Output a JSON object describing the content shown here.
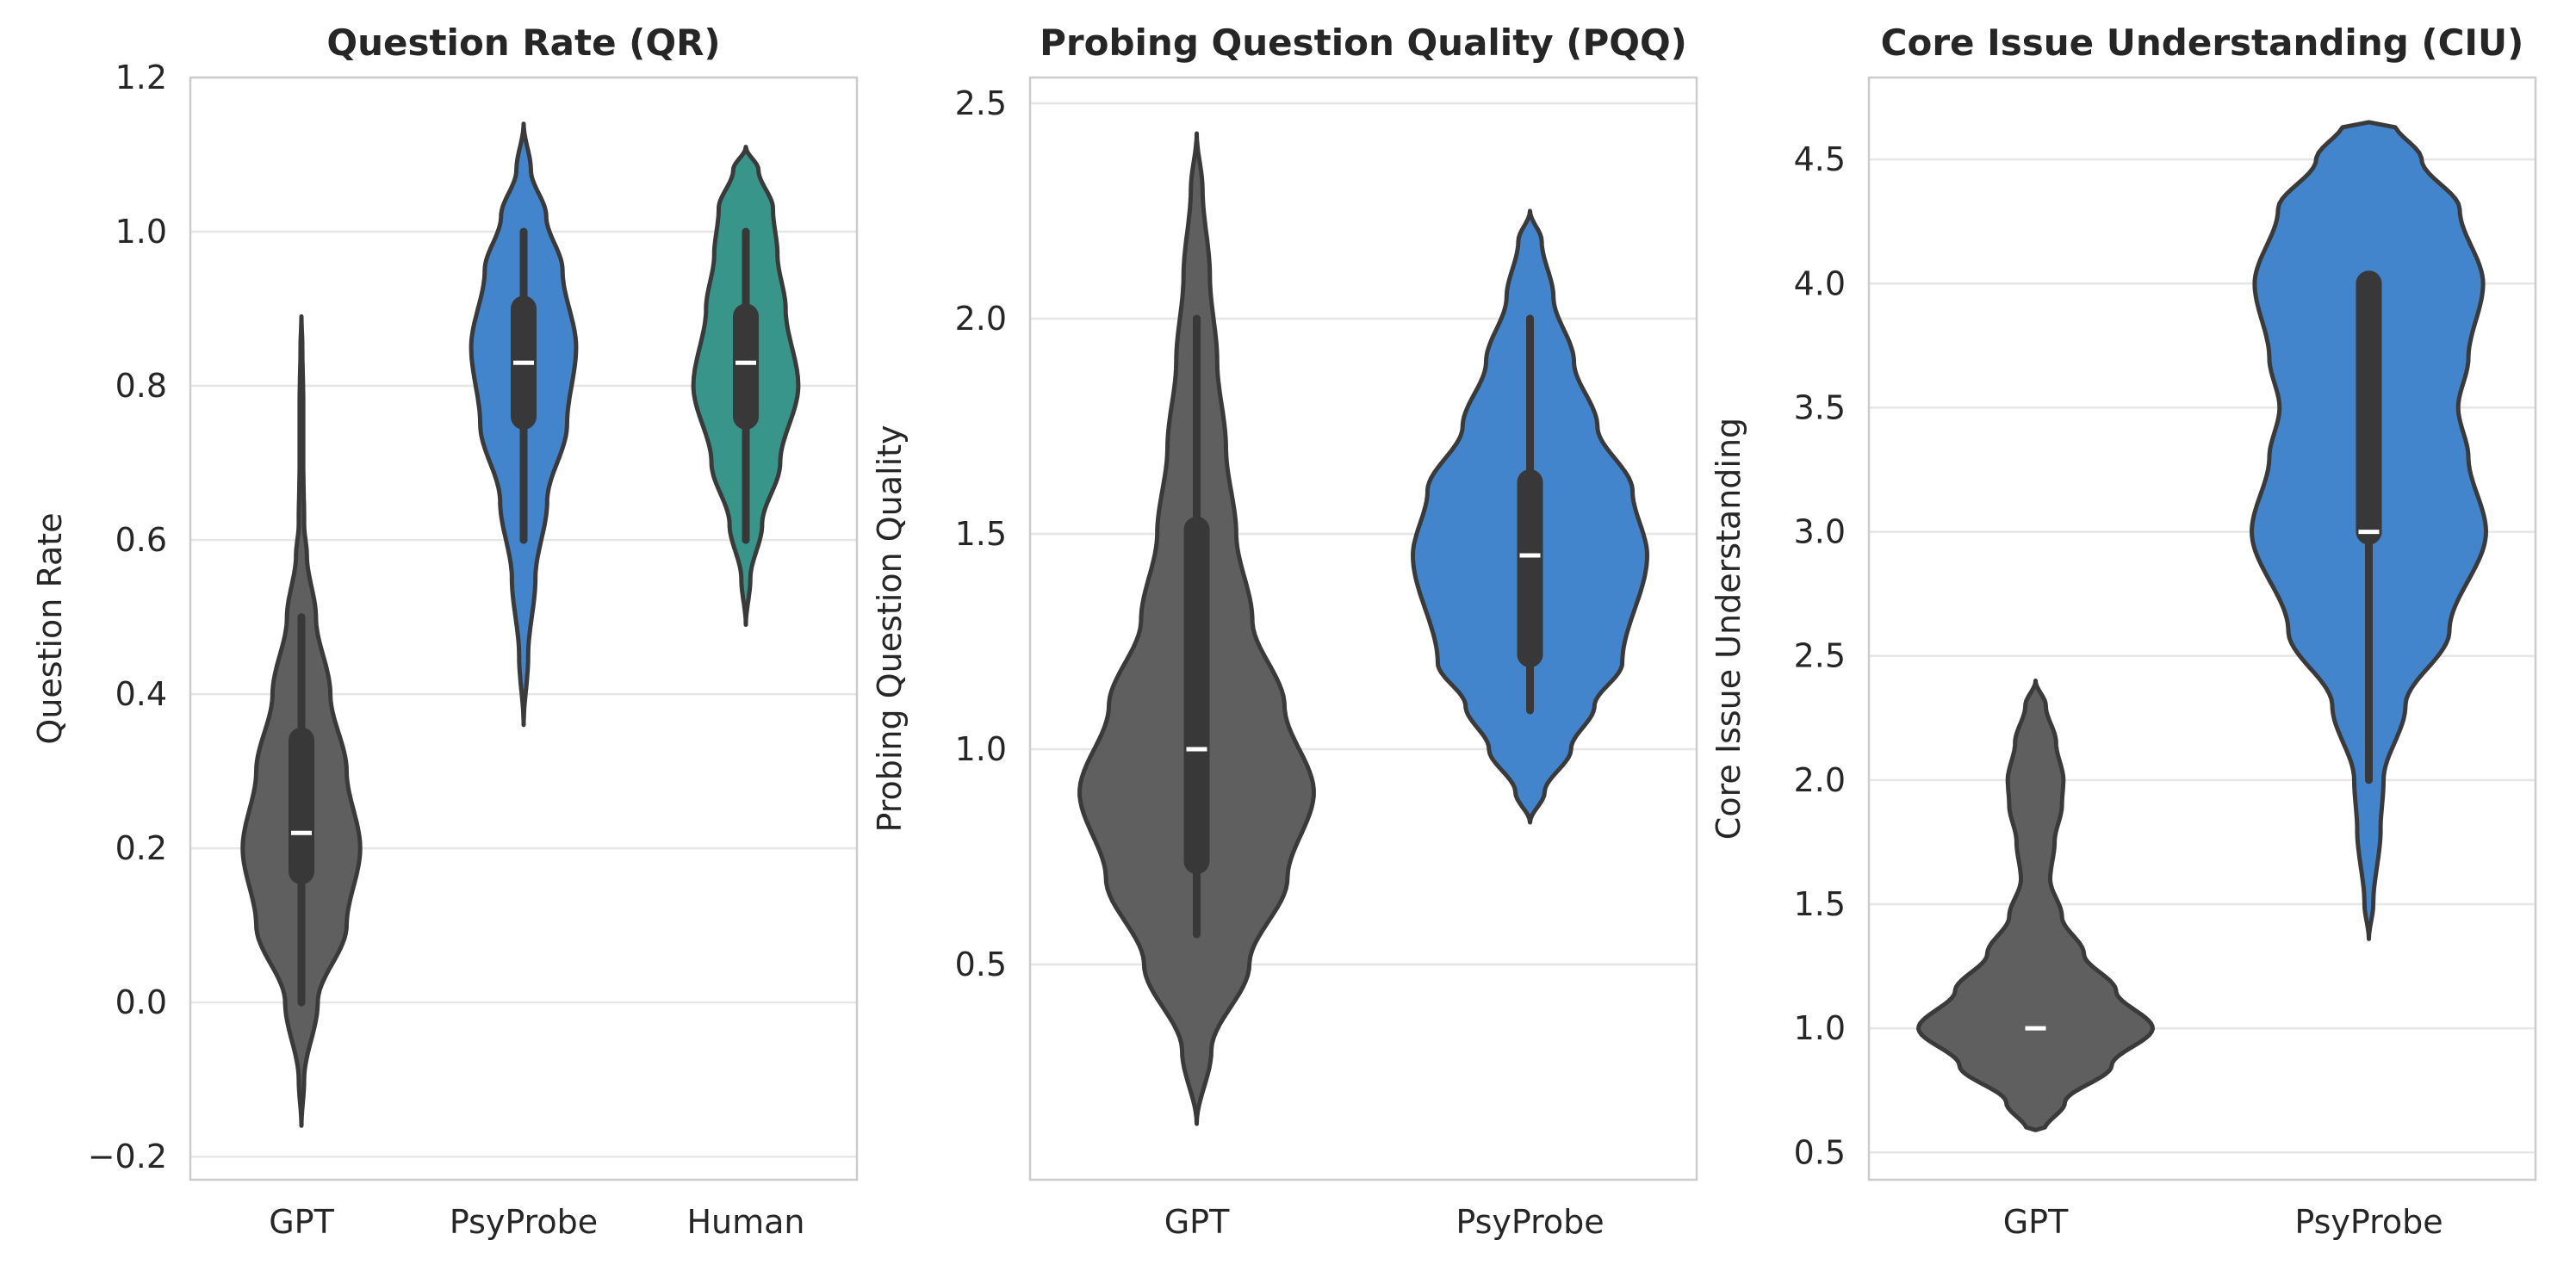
{
  "chart_data": [
    {
      "type": "violin",
      "title": "Question Rate (QR)",
      "xlabel": "",
      "ylabel": "Question Rate",
      "ylim": [
        -0.23,
        1.2
      ],
      "yticks": [
        -0.2,
        0.0,
        0.2,
        0.4,
        0.6,
        0.8,
        1.0,
        1.2
      ],
      "ytick_labels": [
        "−0.2",
        "0.0",
        "0.2",
        "0.4",
        "0.6",
        "0.8",
        "1.0",
        "1.2"
      ],
      "grid": true,
      "categories": [
        "GPT",
        "PsyProbe",
        "Human"
      ],
      "colors": [
        "#5f5f5f",
        "#4285cc",
        "#379689"
      ],
      "violins": [
        {
          "name": "GPT",
          "median": 0.22,
          "q1": 0.17,
          "q3": 0.34,
          "whisker_low": 0.0,
          "whisker_high": 0.5,
          "profile": [
            [
              -0.16,
              0.0
            ],
            [
              -0.1,
              0.03
            ],
            [
              0.0,
              0.18
            ],
            [
              0.1,
              0.5
            ],
            [
              0.2,
              0.65
            ],
            [
              0.3,
              0.5
            ],
            [
              0.4,
              0.32
            ],
            [
              0.5,
              0.16
            ],
            [
              0.58,
              0.06
            ],
            [
              0.62,
              0.03
            ],
            [
              0.7,
              0.02
            ],
            [
              0.78,
              0.02
            ],
            [
              0.85,
              0.01
            ],
            [
              0.89,
              0.0
            ]
          ]
        },
        {
          "name": "PsyProbe",
          "median": 0.83,
          "q1": 0.76,
          "q3": 0.9,
          "whisker_low": 0.6,
          "whisker_high": 1.0,
          "profile": [
            [
              0.36,
              0.0
            ],
            [
              0.45,
              0.05
            ],
            [
              0.55,
              0.13
            ],
            [
              0.65,
              0.26
            ],
            [
              0.75,
              0.48
            ],
            [
              0.85,
              0.58
            ],
            [
              0.95,
              0.43
            ],
            [
              1.02,
              0.25
            ],
            [
              1.08,
              0.08
            ],
            [
              1.14,
              0.0
            ]
          ]
        },
        {
          "name": "Human",
          "median": 0.83,
          "q1": 0.76,
          "q3": 0.89,
          "whisker_low": 0.6,
          "whisker_high": 1.0,
          "profile": [
            [
              0.49,
              0.0
            ],
            [
              0.55,
              0.05
            ],
            [
              0.62,
              0.18
            ],
            [
              0.7,
              0.38
            ],
            [
              0.8,
              0.58
            ],
            [
              0.9,
              0.44
            ],
            [
              0.97,
              0.35
            ],
            [
              1.03,
              0.3
            ],
            [
              1.08,
              0.14
            ],
            [
              1.11,
              0.0
            ]
          ]
        }
      ]
    },
    {
      "type": "violin",
      "title": "Probing Question Quality (PQQ)",
      "xlabel": "",
      "ylabel": "Probing Question Quality",
      "ylim": [
        0.0,
        2.56
      ],
      "yticks": [
        0.5,
        1.0,
        1.5,
        2.0,
        2.5
      ],
      "ytick_labels": [
        "0.5",
        "1.0",
        "1.5",
        "2.0",
        "2.5"
      ],
      "grid": true,
      "categories": [
        "GPT",
        "PsyProbe"
      ],
      "colors": [
        "#5f5f5f",
        "#4285cc"
      ],
      "violins": [
        {
          "name": "GPT",
          "median": 1.0,
          "q1": 0.74,
          "q3": 1.51,
          "whisker_low": 0.57,
          "whisker_high": 2.0,
          "profile": [
            [
              0.13,
              0.0
            ],
            [
              0.3,
              0.1
            ],
            [
              0.5,
              0.36
            ],
            [
              0.7,
              0.62
            ],
            [
              0.9,
              0.8
            ],
            [
              1.1,
              0.6
            ],
            [
              1.3,
              0.38
            ],
            [
              1.5,
              0.27
            ],
            [
              1.7,
              0.2
            ],
            [
              1.9,
              0.14
            ],
            [
              2.1,
              0.09
            ],
            [
              2.3,
              0.04
            ],
            [
              2.43,
              0.0
            ]
          ]
        },
        {
          "name": "PsyProbe",
          "median": 1.45,
          "q1": 1.22,
          "q3": 1.62,
          "whisker_low": 1.09,
          "whisker_high": 2.0,
          "profile": [
            [
              0.83,
              0.0
            ],
            [
              0.9,
              0.1
            ],
            [
              1.0,
              0.28
            ],
            [
              1.1,
              0.44
            ],
            [
              1.2,
              0.63
            ],
            [
              1.45,
              0.8
            ],
            [
              1.6,
              0.7
            ],
            [
              1.75,
              0.46
            ],
            [
              1.9,
              0.3
            ],
            [
              2.05,
              0.16
            ],
            [
              2.18,
              0.08
            ],
            [
              2.25,
              0.0
            ]
          ]
        }
      ]
    },
    {
      "type": "violin",
      "title": "Core Issue Understanding (CIU)",
      "xlabel": "",
      "ylabel": "Core Issue Understanding",
      "ylim": [
        0.39,
        4.83
      ],
      "yticks": [
        0.5,
        1.0,
        1.5,
        2.0,
        2.5,
        3.0,
        3.5,
        4.0,
        4.5
      ],
      "ytick_labels": [
        "0.5",
        "1.0",
        "1.5",
        "2.0",
        "2.5",
        "3.0",
        "3.5",
        "4.0",
        "4.5"
      ],
      "grid": true,
      "categories": [
        "GPT",
        "PsyProbe"
      ],
      "colors": [
        "#5f5f5f",
        "#4285cc"
      ],
      "violins": [
        {
          "name": "GPT",
          "median": 1.0,
          "q1": 1.0,
          "q3": 1.0,
          "whisker_low": 1.0,
          "whisker_high": 1.0,
          "profile": [
            [
              0.59,
              0.0
            ],
            [
              0.59,
              0.06
            ],
            [
              0.7,
              0.2
            ],
            [
              0.85,
              0.52
            ],
            [
              1.0,
              0.8
            ],
            [
              1.15,
              0.55
            ],
            [
              1.3,
              0.33
            ],
            [
              1.45,
              0.18
            ],
            [
              1.6,
              0.1
            ],
            [
              1.75,
              0.13
            ],
            [
              1.9,
              0.18
            ],
            [
              2.0,
              0.19
            ],
            [
              2.15,
              0.14
            ],
            [
              2.3,
              0.07
            ],
            [
              2.4,
              0.0
            ]
          ]
        },
        {
          "name": "PsyProbe",
          "median": 3.0,
          "q1": 3.0,
          "q3": 4.0,
          "whisker_low": 2.0,
          "whisker_high": 4.0,
          "profile": [
            [
              1.36,
              0.0
            ],
            [
              1.5,
              0.03
            ],
            [
              1.8,
              0.08
            ],
            [
              2.0,
              0.1
            ],
            [
              2.3,
              0.25
            ],
            [
              2.6,
              0.55
            ],
            [
              3.0,
              0.8
            ],
            [
              3.3,
              0.68
            ],
            [
              3.5,
              0.61
            ],
            [
              3.7,
              0.68
            ],
            [
              4.0,
              0.78
            ],
            [
              4.3,
              0.62
            ],
            [
              4.5,
              0.36
            ],
            [
              4.65,
              0.17
            ],
            [
              4.65,
              0.0
            ]
          ]
        }
      ]
    }
  ]
}
